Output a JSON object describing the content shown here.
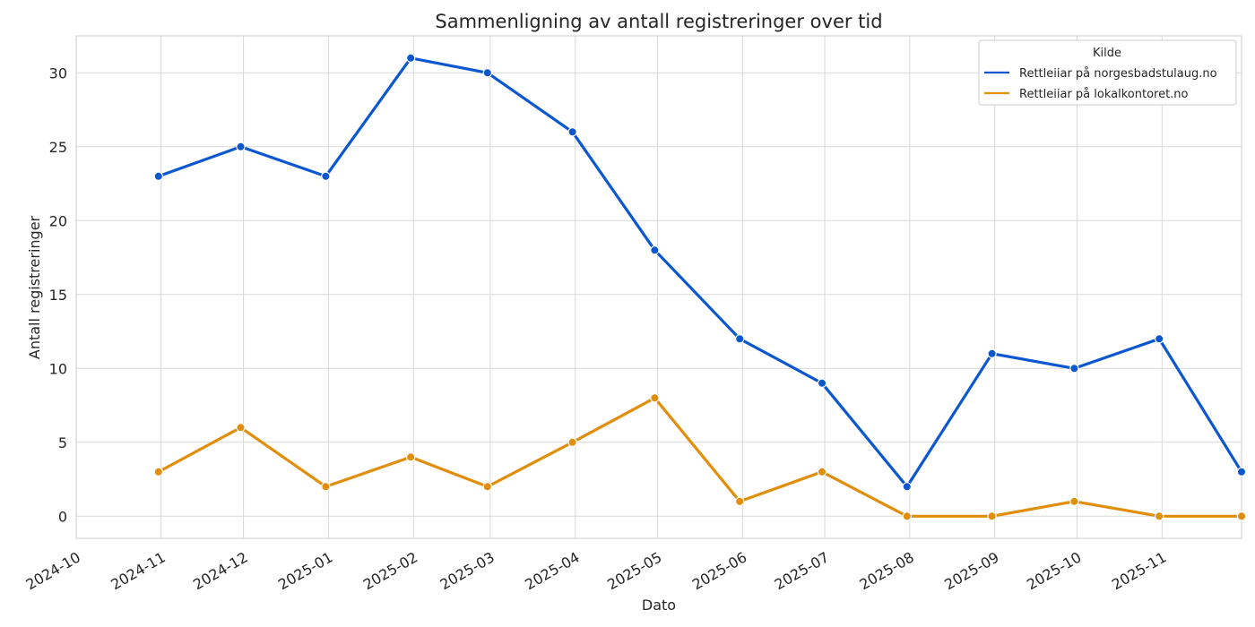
{
  "chart_data": {
    "type": "line",
    "title": "Sammenligning av antall registreringer over tid",
    "xlabel": "Dato",
    "ylabel": "Antall registreringer",
    "x": [
      "2024-10-31",
      "2024-11-30",
      "2024-12-31",
      "2025-01-31",
      "2025-02-28",
      "2025-03-31",
      "2025-04-30",
      "2025-05-31",
      "2025-06-30",
      "2025-07-31",
      "2025-08-31",
      "2025-09-30",
      "2025-10-31",
      "2025-11-30"
    ],
    "x_ticks": [
      "2024-10",
      "2024-11",
      "2024-12",
      "2025-01",
      "2025-02",
      "2025-03",
      "2025-04",
      "2025-05",
      "2025-06",
      "2025-07",
      "2025-08",
      "2025-09",
      "2025-10",
      "2025-11"
    ],
    "xlim": [
      "2024-10-01",
      "2025-11-30"
    ],
    "ylim": [
      -1.5,
      32.5
    ],
    "y_ticks": [
      0,
      5,
      10,
      15,
      20,
      25,
      30
    ],
    "grid": true,
    "legend": {
      "title": "Kilde",
      "placement": "top-right"
    },
    "series": [
      {
        "name": "Rettleiiar på norgesbadstulaug.no",
        "color": "#0b57d0",
        "values": [
          23,
          25,
          23,
          31,
          30,
          26,
          18,
          12,
          9,
          2,
          11,
          10,
          12,
          3
        ]
      },
      {
        "name": "Rettleiiar på lokalkontoret.no",
        "color": "#e08e0b",
        "values": [
          3,
          6,
          2,
          4,
          2,
          5,
          8,
          1,
          3,
          0,
          0,
          1,
          0,
          0
        ]
      }
    ]
  }
}
